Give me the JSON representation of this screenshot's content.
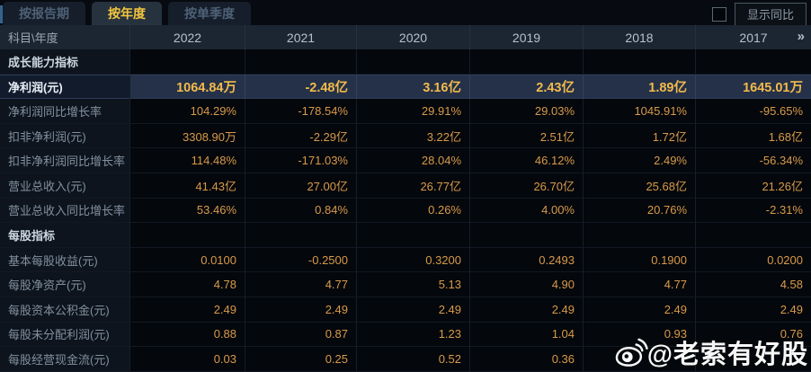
{
  "tabs": [
    {
      "label": "按报告期",
      "active": false
    },
    {
      "label": "按年度",
      "active": true
    },
    {
      "label": "按单季度",
      "active": false
    }
  ],
  "controls": {
    "show_yoy_label": "显示同比",
    "checkbox_checked": false
  },
  "table": {
    "corner_header": "科目\\年度",
    "year_columns": [
      "2022",
      "2021",
      "2020",
      "2019",
      "2018",
      "2017"
    ],
    "more_columns_icon": "»",
    "rows": [
      {
        "type": "section",
        "label": "成长能力指标",
        "values": [
          "",
          "",
          "",
          "",
          "",
          ""
        ]
      },
      {
        "type": "highlight",
        "label": "净利润(元)",
        "values": [
          "1064.84万",
          "-2.48亿",
          "3.16亿",
          "2.43亿",
          "1.89亿",
          "1645.01万"
        ]
      },
      {
        "type": "data",
        "label": "净利润同比增长率",
        "values": [
          "104.29%",
          "-178.54%",
          "29.91%",
          "29.03%",
          "1045.91%",
          "-95.65%"
        ]
      },
      {
        "type": "data",
        "label": "扣非净利润(元)",
        "values": [
          "3308.90万",
          "-2.29亿",
          "3.22亿",
          "2.51亿",
          "1.72亿",
          "1.68亿"
        ]
      },
      {
        "type": "data",
        "label": "扣非净利润同比增长率",
        "values": [
          "114.48%",
          "-171.03%",
          "28.04%",
          "46.12%",
          "2.49%",
          "-56.34%"
        ]
      },
      {
        "type": "data",
        "label": "营业总收入(元)",
        "values": [
          "41.43亿",
          "27.00亿",
          "26.77亿",
          "26.70亿",
          "25.68亿",
          "21.26亿"
        ]
      },
      {
        "type": "data",
        "label": "营业总收入同比增长率",
        "values": [
          "53.46%",
          "0.84%",
          "0.26%",
          "4.00%",
          "20.76%",
          "-2.31%"
        ]
      },
      {
        "type": "section",
        "label": "每股指标",
        "values": [
          "",
          "",
          "",
          "",
          "",
          ""
        ]
      },
      {
        "type": "data",
        "label": "基本每股收益(元)",
        "values": [
          "0.0100",
          "-0.2500",
          "0.3200",
          "0.2493",
          "0.1900",
          "0.0200"
        ]
      },
      {
        "type": "data",
        "label": "每股净资产(元)",
        "values": [
          "4.78",
          "4.77",
          "5.13",
          "4.90",
          "4.77",
          "4.58"
        ]
      },
      {
        "type": "data",
        "label": "每股资本公积金(元)",
        "values": [
          "2.49",
          "2.49",
          "2.49",
          "2.49",
          "2.49",
          "2.49"
        ]
      },
      {
        "type": "data",
        "label": "每股未分配利润(元)",
        "values": [
          "0.88",
          "0.87",
          "1.23",
          "1.04",
          "0.93",
          "0.76"
        ]
      },
      {
        "type": "data",
        "label": "每股经营现金流(元)",
        "values": [
          "0.03",
          "0.25",
          "0.52",
          "0.36",
          "",
          ""
        ]
      }
    ]
  },
  "watermark": {
    "icon": "weibo-icon",
    "text": "@老索有好股"
  }
}
